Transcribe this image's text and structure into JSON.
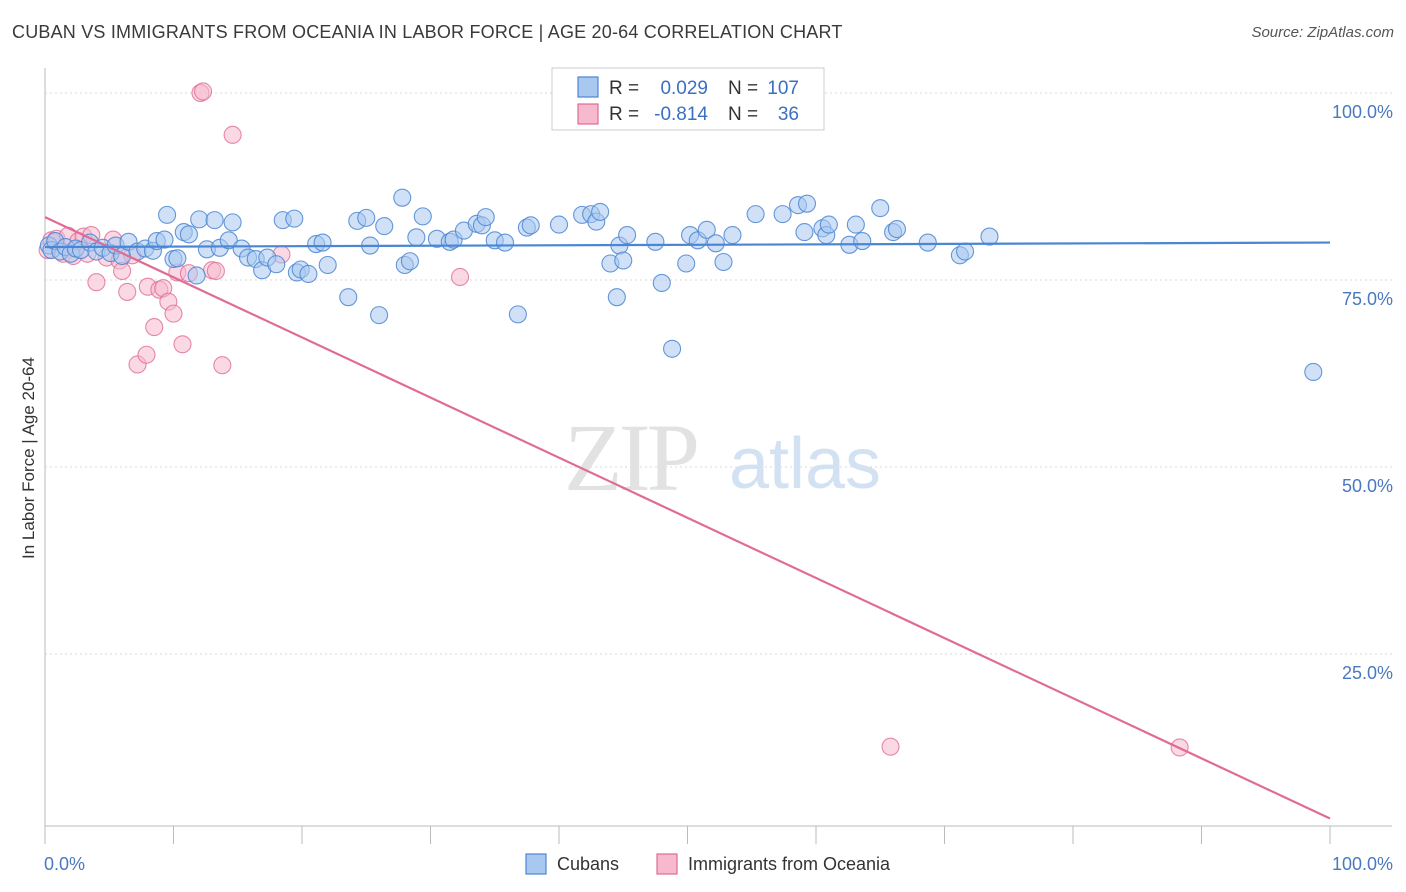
{
  "title": "CUBAN VS IMMIGRANTS FROM OCEANIA IN LABOR FORCE | AGE 20-64 CORRELATION CHART",
  "source": "Source: ZipAtlas.com",
  "watermark": {
    "zip": "ZIP",
    "atlas": "atlas"
  },
  "colors": {
    "blue": "#4a86d4",
    "blue_fill": "#a9c8f0",
    "pink": "#e06b96",
    "pink_fill": "#f6b9cd",
    "grid": "#d9d9d9",
    "tick_text": "#4a78c0"
  },
  "chart_data": {
    "type": "scatter",
    "title": "CUBAN VS IMMIGRANTS FROM OCEANIA IN LABOR FORCE | AGE 20-64 CORRELATION CHART",
    "xlabel": "",
    "ylabel": "In Labor Force | Age 20-64",
    "xlim": [
      0,
      100
    ],
    "ylim": [
      2,
      102
    ],
    "x_ticks": [
      {
        "value": 0,
        "label": "0.0%"
      },
      {
        "value": 100,
        "label": "100.0%"
      }
    ],
    "y_ticks": [
      {
        "value": 25,
        "label": "25.0%"
      },
      {
        "value": 50,
        "label": "50.0%"
      },
      {
        "value": 75,
        "label": "75.0%"
      },
      {
        "value": 100,
        "label": "100.0%"
      }
    ],
    "legend": {
      "entries": [
        {
          "r_label": "R =",
          "r": "0.029",
          "n_label": "N =",
          "n": "107"
        },
        {
          "r_label": "R =",
          "r": "-0.814",
          "n_label": "N =",
          "n": "36"
        }
      ]
    },
    "series": [
      {
        "name": "Cubans",
        "color": "#4a86d4",
        "trend": {
          "x": [
            0,
            100
          ],
          "y": [
            79.4,
            80.0
          ]
        },
        "points": [
          [
            0.3,
            79.6
          ],
          [
            0.5,
            79.0
          ],
          [
            0.8,
            80.2
          ],
          [
            1.2,
            78.8
          ],
          [
            1.6,
            79.4
          ],
          [
            2.0,
            78.5
          ],
          [
            2.4,
            79.2
          ],
          [
            2.8,
            79.0
          ],
          [
            3.5,
            80.0
          ],
          [
            4.0,
            78.8
          ],
          [
            4.5,
            79.3
          ],
          [
            5.1,
            78.6
          ],
          [
            5.5,
            79.6
          ],
          [
            6.0,
            78.2
          ],
          [
            6.5,
            80.1
          ],
          [
            7.2,
            78.8
          ],
          [
            7.8,
            79.2
          ],
          [
            8.4,
            78.9
          ],
          [
            8.7,
            80.2
          ],
          [
            9.3,
            80.4
          ],
          [
            9.5,
            83.7
          ],
          [
            10.0,
            77.8
          ],
          [
            10.3,
            77.9
          ],
          [
            10.8,
            81.4
          ],
          [
            11.2,
            81.1
          ],
          [
            11.8,
            75.6
          ],
          [
            12.0,
            83.1
          ],
          [
            12.6,
            79.1
          ],
          [
            13.2,
            83.0
          ],
          [
            13.6,
            79.3
          ],
          [
            14.3,
            80.3
          ],
          [
            14.6,
            82.7
          ],
          [
            15.3,
            79.2
          ],
          [
            15.8,
            78.0
          ],
          [
            16.4,
            77.8
          ],
          [
            16.9,
            76.3
          ],
          [
            17.3,
            78.0
          ],
          [
            18.0,
            77.1
          ],
          [
            18.5,
            83.0
          ],
          [
            19.4,
            83.2
          ],
          [
            19.6,
            76.0
          ],
          [
            19.9,
            76.4
          ],
          [
            20.5,
            75.8
          ],
          [
            21.1,
            79.8
          ],
          [
            21.6,
            80.0
          ],
          [
            22.0,
            77.0
          ],
          [
            23.6,
            72.7
          ],
          [
            24.3,
            82.9
          ],
          [
            25.0,
            83.3
          ],
          [
            25.3,
            79.6
          ],
          [
            26.0,
            70.3
          ],
          [
            26.4,
            82.2
          ],
          [
            27.8,
            86.0
          ],
          [
            28.0,
            77.0
          ],
          [
            28.4,
            77.5
          ],
          [
            28.9,
            80.7
          ],
          [
            29.4,
            83.5
          ],
          [
            30.5,
            80.5
          ],
          [
            31.5,
            80.1
          ],
          [
            31.8,
            80.4
          ],
          [
            32.6,
            81.6
          ],
          [
            33.6,
            82.5
          ],
          [
            34.0,
            82.3
          ],
          [
            34.3,
            83.4
          ],
          [
            35.0,
            80.3
          ],
          [
            35.8,
            80.0
          ],
          [
            36.8,
            70.4
          ],
          [
            37.5,
            82.0
          ],
          [
            37.8,
            82.3
          ],
          [
            40.0,
            82.4
          ],
          [
            41.8,
            83.7
          ],
          [
            42.5,
            83.8
          ],
          [
            42.9,
            82.8
          ],
          [
            43.2,
            84.1
          ],
          [
            44.0,
            77.2
          ],
          [
            44.5,
            72.7
          ],
          [
            44.7,
            79.6
          ],
          [
            45.0,
            77.6
          ],
          [
            45.3,
            81.0
          ],
          [
            47.5,
            80.1
          ],
          [
            48.0,
            74.6
          ],
          [
            48.8,
            65.8
          ],
          [
            49.9,
            77.2
          ],
          [
            50.2,
            81.0
          ],
          [
            50.8,
            80.3
          ],
          [
            51.5,
            81.7
          ],
          [
            52.2,
            79.9
          ],
          [
            52.8,
            77.4
          ],
          [
            53.5,
            81.0
          ],
          [
            55.3,
            83.8
          ],
          [
            57.4,
            83.8
          ],
          [
            58.6,
            85.0
          ],
          [
            59.1,
            81.4
          ],
          [
            59.3,
            85.2
          ],
          [
            60.5,
            81.9
          ],
          [
            60.8,
            81.0
          ],
          [
            61.0,
            82.4
          ],
          [
            62.6,
            79.7
          ],
          [
            63.1,
            82.4
          ],
          [
            63.6,
            80.2
          ],
          [
            65.0,
            84.6
          ],
          [
            66.0,
            81.4
          ],
          [
            66.3,
            81.8
          ],
          [
            68.7,
            80.0
          ],
          [
            71.2,
            78.3
          ],
          [
            71.6,
            78.8
          ],
          [
            73.5,
            80.8
          ],
          [
            98.7,
            62.7
          ]
        ]
      },
      {
        "name": "Immigrants from Oceania",
        "color": "#e06b96",
        "trend": {
          "x": [
            0,
            100
          ],
          "y": [
            83.4,
            3.0
          ]
        },
        "points": [
          [
            0.2,
            79.0
          ],
          [
            0.5,
            80.3
          ],
          [
            0.9,
            80.5
          ],
          [
            1.4,
            78.5
          ],
          [
            1.8,
            80.9
          ],
          [
            2.2,
            78.2
          ],
          [
            2.6,
            80.2
          ],
          [
            3.0,
            80.8
          ],
          [
            3.3,
            78.5
          ],
          [
            3.6,
            81.0
          ],
          [
            4.0,
            74.7
          ],
          [
            4.8,
            78.0
          ],
          [
            5.3,
            80.4
          ],
          [
            5.8,
            77.6
          ],
          [
            6.0,
            76.2
          ],
          [
            6.4,
            73.4
          ],
          [
            6.8,
            78.3
          ],
          [
            7.2,
            63.7
          ],
          [
            7.9,
            65.0
          ],
          [
            8.0,
            74.1
          ],
          [
            8.5,
            68.7
          ],
          [
            8.9,
            73.7
          ],
          [
            9.2,
            73.9
          ],
          [
            9.6,
            72.1
          ],
          [
            10.0,
            70.5
          ],
          [
            10.3,
            76.0
          ],
          [
            10.7,
            66.4
          ],
          [
            11.2,
            75.9
          ],
          [
            12.1,
            100.0
          ],
          [
            12.3,
            100.2
          ],
          [
            13.0,
            76.3
          ],
          [
            13.3,
            76.2
          ],
          [
            13.8,
            63.6
          ],
          [
            14.6,
            94.4
          ],
          [
            18.4,
            78.4
          ],
          [
            32.3,
            75.4
          ],
          [
            65.8,
            12.6
          ],
          [
            88.3,
            12.5
          ]
        ]
      }
    ]
  },
  "bottom_legend": [
    {
      "label": "Cubans"
    },
    {
      "label": "Immigrants from Oceania"
    }
  ]
}
